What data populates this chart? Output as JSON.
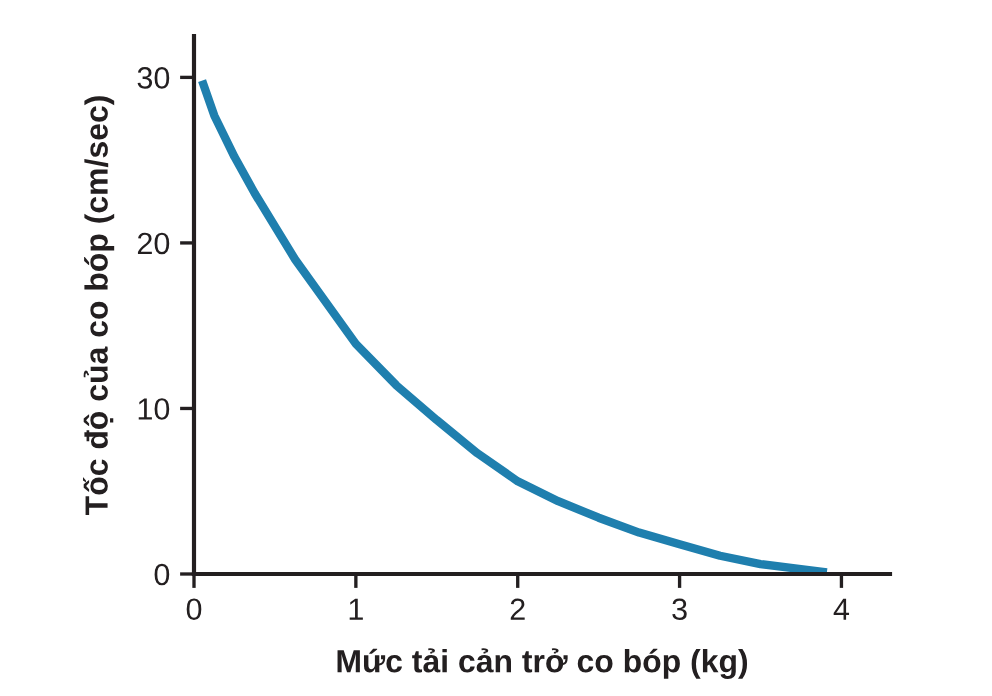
{
  "chart_data": {
    "type": "line",
    "xlabel": "Mức tải cản trở co bóp (kg)",
    "ylabel": "Tốc độ của co bóp (cm/sec)",
    "x": [
      0.05,
      0.125,
      0.25,
      0.375,
      0.5,
      0.625,
      0.75,
      1,
      1.25,
      1.5,
      1.75,
      2,
      2.25,
      2.5,
      2.75,
      3,
      3.25,
      3.5,
      3.75,
      3.91
    ],
    "series": [
      {
        "color": "#1f7fae",
        "values": [
          29.8,
          27.7,
          25.2,
          23,
          21,
          19,
          17.3,
          13.9,
          11.4,
          9.3,
          7.3,
          5.6,
          4.4,
          3.4,
          2.5,
          1.8,
          1.1,
          0.6,
          0.3,
          0.1
        ]
      }
    ],
    "xlim": [
      0,
      4.3
    ],
    "ylim": [
      0,
      32.5
    ],
    "xticks": [
      0,
      1,
      2,
      3,
      4
    ],
    "yticks": [
      0,
      10,
      20,
      30
    ],
    "marker": "none",
    "line_style": "solid"
  }
}
